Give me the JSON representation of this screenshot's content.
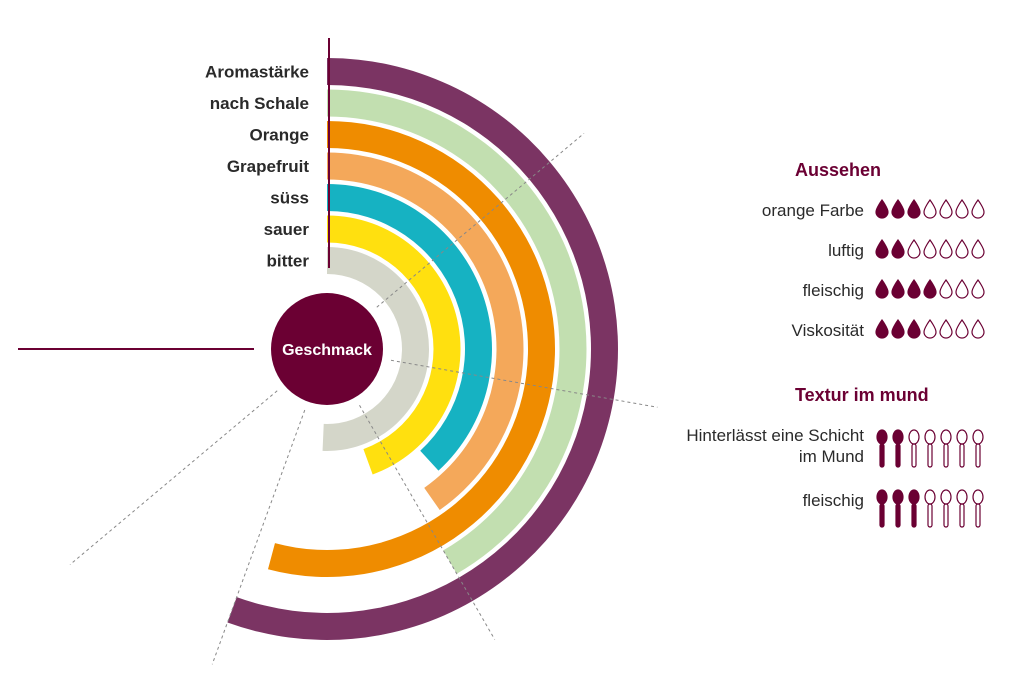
{
  "chart_data": {
    "type": "radial-bar",
    "center_label": "Geschmack",
    "series": [
      {
        "label": "Aromastärke",
        "value": 80,
        "color": "#7b3463"
      },
      {
        "label": "nach Schale",
        "value": 60,
        "color": "#c2dfb0"
      },
      {
        "label": "Orange",
        "value": 78,
        "color": "#ef8c00"
      },
      {
        "label": "Grapefruit",
        "value": 58,
        "color": "#f4a85a"
      },
      {
        "label": "süss",
        "value": 55,
        "color": "#16b2c2"
      },
      {
        "label": "sauer",
        "value": 64,
        "color": "#ffe00f"
      },
      {
        "label": "bitter",
        "value": 73,
        "color": "#d4d6c9"
      }
    ],
    "max_value": 100
  },
  "aussehen": {
    "title": "Aussehen",
    "max": 7,
    "items": [
      {
        "label": "orange Farbe",
        "rating": 3
      },
      {
        "label": "luftig",
        "rating": 2
      },
      {
        "label": "fleischig",
        "rating": 4
      },
      {
        "label": "Viskosität",
        "rating": 3
      }
    ]
  },
  "textur": {
    "title": "Textur im mund",
    "max": 7,
    "items": [
      {
        "label": "Hinterlässt eine Schicht im Mund",
        "rating": 2
      },
      {
        "label": "fleischig",
        "rating": 3
      }
    ]
  },
  "colors": {
    "accent": "#6b0033",
    "icon_fill": "#6b0033",
    "grid_line": "#888888"
  },
  "icons": {
    "aussehen_icon": "drop-icon",
    "textur_icon": "spoon-icon"
  }
}
